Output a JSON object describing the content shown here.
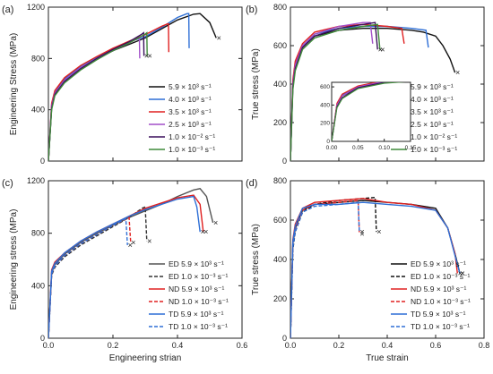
{
  "figure_labels": [
    "(a)",
    "(b)",
    "(c)",
    "(d)"
  ],
  "chart_data": [
    {
      "panel": "(a)",
      "type": "line",
      "xlabel": "",
      "ylabel": "Engineering Stress (MPa)",
      "xlim": [
        0,
        0.6
      ],
      "ylim": [
        0,
        1200
      ],
      "xticks": [],
      "yticks": [
        "0",
        "400",
        "800",
        "1200"
      ],
      "legend": "bottom-right",
      "series": [
        {
          "name": "5.9 × 10³ s⁻¹",
          "color": "#111111",
          "x": [
            0,
            0.01,
            0.02,
            0.05,
            0.1,
            0.15,
            0.2,
            0.25,
            0.3,
            0.35,
            0.4,
            0.45,
            0.47,
            0.5,
            0.52
          ],
          "y": [
            0,
            420,
            520,
            620,
            720,
            800,
            860,
            910,
            960,
            1030,
            1100,
            1145,
            1150,
            1080,
            960
          ],
          "end_marker": true
        },
        {
          "name": "4.0 × 10³ s⁻¹",
          "color": "#2e6fd6",
          "x": [
            0,
            0.01,
            0.02,
            0.05,
            0.1,
            0.15,
            0.2,
            0.25,
            0.3,
            0.35,
            0.4,
            0.43,
            0.435,
            0.436
          ],
          "y": [
            0,
            440,
            540,
            640,
            740,
            810,
            870,
            930,
            970,
            1040,
            1120,
            1150,
            1150,
            880
          ]
        },
        {
          "name": "3.5 × 10³ s⁻¹",
          "color": "#e02020",
          "x": [
            0,
            0.01,
            0.02,
            0.05,
            0.1,
            0.15,
            0.2,
            0.25,
            0.3,
            0.35,
            0.37,
            0.372,
            0.373
          ],
          "y": [
            0,
            450,
            550,
            650,
            745,
            815,
            880,
            935,
            985,
            1050,
            1070,
            1070,
            850
          ]
        },
        {
          "name": "2.5 × 10³ s⁻¹",
          "color": "#a24fc9",
          "x": [
            0,
            0.01,
            0.02,
            0.05,
            0.1,
            0.15,
            0.2,
            0.25,
            0.28,
            0.282,
            0.283
          ],
          "y": [
            0,
            430,
            530,
            630,
            730,
            800,
            860,
            920,
            960,
            960,
            800
          ]
        },
        {
          "name": "1.0 × 10⁻² s⁻¹",
          "color": "#3a0f5c",
          "x": [
            0,
            0.01,
            0.02,
            0.05,
            0.1,
            0.15,
            0.2,
            0.25,
            0.29,
            0.295,
            0.296
          ],
          "y": [
            0,
            410,
            520,
            620,
            720,
            800,
            870,
            930,
            990,
            1000,
            820
          ],
          "end_marker": true
        },
        {
          "name": "1.0 × 10⁻³ s⁻¹",
          "color": "#3f8a3a",
          "x": [
            0,
            0.01,
            0.02,
            0.05,
            0.1,
            0.15,
            0.2,
            0.25,
            0.3,
            0.305,
            0.306
          ],
          "y": [
            0,
            400,
            510,
            610,
            710,
            790,
            860,
            920,
            990,
            1000,
            820
          ],
          "end_marker": true
        }
      ]
    },
    {
      "panel": "(b)",
      "type": "line",
      "xlabel": "",
      "ylabel": "True stress (MPa)",
      "xlim": [
        0,
        0.8
      ],
      "ylim": [
        0,
        800
      ],
      "xticks": [],
      "yticks": [
        "0",
        "200",
        "400",
        "600",
        "800"
      ],
      "legend": "bottom-right",
      "series": [
        {
          "name": "5.9 × 10³ s⁻¹",
          "color": "#111111",
          "x": [
            0,
            0.01,
            0.02,
            0.05,
            0.1,
            0.2,
            0.3,
            0.4,
            0.5,
            0.55,
            0.6,
            0.63,
            0.66,
            0.68
          ],
          "y": [
            0,
            400,
            500,
            590,
            650,
            680,
            690,
            690,
            680,
            670,
            650,
            600,
            530,
            460
          ],
          "end_marker": true
        },
        {
          "name": "4.0 × 10³ s⁻¹",
          "color": "#2e6fd6",
          "x": [
            0,
            0.01,
            0.02,
            0.05,
            0.1,
            0.2,
            0.3,
            0.4,
            0.5,
            0.56,
            0.57
          ],
          "y": [
            0,
            410,
            510,
            600,
            660,
            690,
            700,
            700,
            690,
            680,
            590
          ]
        },
        {
          "name": "3.5 × 10³ s⁻¹",
          "color": "#e02020",
          "x": [
            0,
            0.01,
            0.02,
            0.05,
            0.1,
            0.2,
            0.3,
            0.4,
            0.46,
            0.47
          ],
          "y": [
            0,
            420,
            520,
            610,
            670,
            700,
            710,
            700,
            690,
            610
          ]
        },
        {
          "name": "2.5 × 10³ s⁻¹",
          "color": "#a24fc9",
          "x": [
            0,
            0.01,
            0.02,
            0.05,
            0.1,
            0.2,
            0.3,
            0.33,
            0.34
          ],
          "y": [
            0,
            400,
            500,
            600,
            660,
            700,
            720,
            720,
            610
          ]
        },
        {
          "name": "1.0 × 10⁻² s⁻¹",
          "color": "#3a0f5c",
          "x": [
            0,
            0.01,
            0.02,
            0.05,
            0.1,
            0.2,
            0.3,
            0.35,
            0.36
          ],
          "y": [
            0,
            380,
            480,
            590,
            650,
            690,
            710,
            720,
            580
          ],
          "end_marker": true
        },
        {
          "name": "1.0 × 10⁻³ s⁻¹",
          "color": "#3f8a3a",
          "x": [
            0,
            0.01,
            0.02,
            0.05,
            0.1,
            0.2,
            0.3,
            0.36,
            0.37
          ],
          "y": [
            0,
            370,
            470,
            580,
            640,
            680,
            700,
            710,
            580
          ],
          "end_marker": true
        }
      ],
      "inset": {
        "xlim": [
          0,
          0.15
        ],
        "ylim": [
          0,
          650
        ],
        "xticks": [
          "0.00",
          "0.05",
          "0.10",
          "0.15"
        ],
        "yticks": [
          "0",
          "200",
          "400",
          "600"
        ]
      }
    },
    {
      "panel": "(c)",
      "type": "line",
      "xlabel": "Engineering strian",
      "ylabel": "Engineering stress (MPa)",
      "xlim": [
        0,
        0.6
      ],
      "ylim": [
        0,
        1200
      ],
      "xticks": [
        "0.0",
        "0.2",
        "0.4",
        "0.6"
      ],
      "yticks": [
        "0",
        "400",
        "800",
        "1200"
      ],
      "legend": "bottom-right",
      "series": [
        {
          "name": "ED 5.9 × 10³ s⁻¹",
          "color": "#555555",
          "dash": false,
          "x": [
            0,
            0.01,
            0.02,
            0.05,
            0.1,
            0.15,
            0.2,
            0.25,
            0.3,
            0.35,
            0.4,
            0.45,
            0.47,
            0.49,
            0.5,
            0.51
          ],
          "y": [
            0,
            500,
            560,
            640,
            730,
            800,
            860,
            920,
            970,
            1020,
            1080,
            1130,
            1140,
            1080,
            980,
            880
          ],
          "end_marker": true
        },
        {
          "name": "ED 1.0 × 10⁻³ s⁻¹",
          "color": "#333333",
          "dash": true,
          "x": [
            0,
            0.01,
            0.02,
            0.05,
            0.1,
            0.15,
            0.2,
            0.25,
            0.29,
            0.3,
            0.305
          ],
          "y": [
            0,
            480,
            540,
            620,
            710,
            780,
            850,
            920,
            990,
            1000,
            740
          ],
          "end_marker": true
        },
        {
          "name": "ND 5.9 × 10³ s⁻¹",
          "color": "#e02020",
          "dash": false,
          "x": [
            0,
            0.01,
            0.02,
            0.05,
            0.1,
            0.15,
            0.2,
            0.25,
            0.3,
            0.35,
            0.4,
            0.45,
            0.47,
            0.48
          ],
          "y": [
            0,
            520,
            580,
            650,
            740,
            810,
            870,
            930,
            990,
            1030,
            1070,
            1090,
            1020,
            810
          ],
          "end_marker": true
        },
        {
          "name": "ND 1.0 × 10⁻³ s⁻¹",
          "color": "#e02020",
          "dash": true,
          "x": [
            0,
            0.01,
            0.02,
            0.05,
            0.1,
            0.15,
            0.2,
            0.25,
            0.255
          ],
          "y": [
            0,
            490,
            550,
            630,
            720,
            790,
            860,
            920,
            730
          ],
          "end_marker": true
        },
        {
          "name": "TD 5.9 × 10³ s⁻¹",
          "color": "#2e6fd6",
          "dash": false,
          "x": [
            0,
            0.01,
            0.02,
            0.05,
            0.1,
            0.15,
            0.2,
            0.25,
            0.3,
            0.35,
            0.4,
            0.45,
            0.46,
            0.47
          ],
          "y": [
            0,
            510,
            570,
            650,
            740,
            810,
            870,
            930,
            980,
            1020,
            1060,
            1080,
            1000,
            810
          ],
          "end_marker": true
        },
        {
          "name": "TD 1.0 × 10⁻³ s⁻¹",
          "color": "#2e6fd6",
          "dash": true,
          "x": [
            0,
            0.01,
            0.02,
            0.05,
            0.1,
            0.15,
            0.2,
            0.24,
            0.245
          ],
          "y": [
            0,
            490,
            550,
            630,
            720,
            790,
            860,
            910,
            710
          ],
          "end_marker": true
        }
      ]
    },
    {
      "panel": "(d)",
      "type": "line",
      "xlabel": "True strain",
      "ylabel": "True stress (MPa)",
      "xlim": [
        0,
        0.8
      ],
      "ylim": [
        0,
        800
      ],
      "xticks": [
        "0.0",
        "0.2",
        "0.4",
        "0.6",
        "0.8"
      ],
      "yticks": [
        "0",
        "200",
        "400",
        "600",
        "800"
      ],
      "legend": "bottom-right",
      "series": [
        {
          "name": "ED 5.9 × 10³ s⁻¹",
          "color": "#111111",
          "dash": false,
          "x": [
            0,
            0.01,
            0.02,
            0.05,
            0.1,
            0.2,
            0.3,
            0.4,
            0.5,
            0.6,
            0.65,
            0.68,
            0.7
          ],
          "y": [
            0,
            480,
            560,
            650,
            680,
            690,
            700,
            690,
            680,
            660,
            560,
            430,
            330
          ],
          "end_marker": true
        },
        {
          "name": "ED 1.0 × 10⁻³ s⁻¹",
          "color": "#111111",
          "dash": true,
          "x": [
            0,
            0.01,
            0.02,
            0.05,
            0.1,
            0.2,
            0.3,
            0.35,
            0.355
          ],
          "y": [
            0,
            450,
            540,
            640,
            680,
            700,
            710,
            715,
            540
          ],
          "end_marker": true
        },
        {
          "name": "ND 5.9 × 10³ s⁻¹",
          "color": "#e02020",
          "dash": false,
          "x": [
            0,
            0.01,
            0.02,
            0.05,
            0.1,
            0.2,
            0.3,
            0.4,
            0.5,
            0.6,
            0.65,
            0.68,
            0.69
          ],
          "y": [
            0,
            500,
            580,
            660,
            690,
            700,
            710,
            690,
            680,
            650,
            560,
            430,
            330
          ],
          "end_marker": true
        },
        {
          "name": "ND 1.0 × 10⁻³ s⁻¹",
          "color": "#e02020",
          "dash": true,
          "x": [
            0,
            0.01,
            0.02,
            0.05,
            0.1,
            0.2,
            0.28,
            0.285
          ],
          "y": [
            0,
            470,
            550,
            650,
            680,
            690,
            700,
            530
          ],
          "end_marker": true
        },
        {
          "name": "TD 5.9 × 10³ s⁻¹",
          "color": "#2e6fd6",
          "dash": false,
          "x": [
            0,
            0.01,
            0.02,
            0.05,
            0.1,
            0.2,
            0.3,
            0.4,
            0.5,
            0.6,
            0.65,
            0.68,
            0.7
          ],
          "y": [
            0,
            490,
            570,
            660,
            680,
            680,
            690,
            680,
            670,
            650,
            560,
            420,
            330
          ],
          "end_marker": true
        },
        {
          "name": "TD 1.0 × 10⁻³ s⁻¹",
          "color": "#2e6fd6",
          "dash": true,
          "x": [
            0,
            0.01,
            0.02,
            0.05,
            0.1,
            0.2,
            0.28,
            0.285
          ],
          "y": [
            0,
            460,
            540,
            640,
            670,
            680,
            690,
            540
          ],
          "end_marker": true
        }
      ]
    }
  ]
}
